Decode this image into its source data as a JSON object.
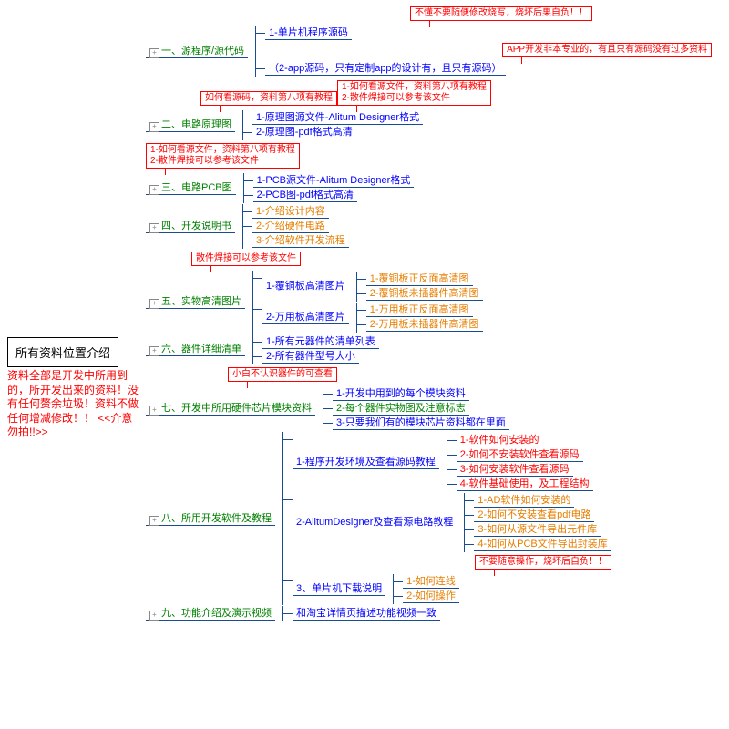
{
  "colors": {
    "green": "#008000",
    "blue": "#0000ff",
    "orange": "#e67e00",
    "red": "#ff0000",
    "dark": "#1a4d8f"
  },
  "root": {
    "title": "所有资料位置介绍",
    "note": "资料全部是开发中所用到的，所开发出来的资料！没有任何赘余垃圾！资料不做任何增减修改！！\n<<介意勿拍!!>>"
  },
  "callouts": {
    "c1": "不懂不要随便修改烧写，烧坏后果自负！！",
    "c1a": "APP开发非本专业的，有且只有源码没有过多资料",
    "c2": "如何看源码，资料第八项有教程",
    "c3": "1-如何看源文件，资料第八项有教程\n2-散件焊接可以参考该文件",
    "c4": "1-如何看源文件，资料第八项有教程\n2-散件焊接可以参考该文件",
    "c5": "散件焊接可以参考该文件",
    "c6": "小白不认识器件的可查看",
    "c7": "不要随意操作，烧坏后自负！！"
  },
  "branches": [
    {
      "label": "一、源程序/源代码",
      "color": "green",
      "children": [
        {
          "label": "1-单片机程序源码",
          "color": "blue"
        },
        {
          "label": "（2-app源码，只有定制app的设计有，且只有源码）",
          "color": "blue"
        }
      ]
    },
    {
      "label": "二、电路原理图",
      "color": "green",
      "children": [
        {
          "label": "1-原理图源文件-Alitum Designer格式",
          "color": "blue"
        },
        {
          "label": "2-原理图-pdf格式高清",
          "color": "blue"
        }
      ]
    },
    {
      "label": "三、电路PCB图",
      "color": "green",
      "children": [
        {
          "label": "1-PCB源文件-Alitum Designer格式",
          "color": "blue"
        },
        {
          "label": "2-PCB图-pdf格式高清",
          "color": "blue"
        }
      ]
    },
    {
      "label": "四、开发说明书",
      "color": "green",
      "children": [
        {
          "label": "1-介绍设计内容",
          "color": "orange"
        },
        {
          "label": "2-介绍硬件电路",
          "color": "orange"
        },
        {
          "label": "3-介绍软件开发流程",
          "color": "orange"
        }
      ]
    },
    {
      "label": "五、实物高清图片",
      "color": "green",
      "children": [
        {
          "label": "1-覆铜板高清图片",
          "color": "blue",
          "children": [
            {
              "label": "1-覆铜板正反面高清图",
              "color": "orange"
            },
            {
              "label": "2-覆铜板未插器件高清图",
              "color": "orange"
            }
          ]
        },
        {
          "label": "2-万用板高清图片",
          "color": "blue",
          "children": [
            {
              "label": "1-万用板正反面高清图",
              "color": "orange"
            },
            {
              "label": "2-万用板未插器件高清图",
              "color": "orange"
            }
          ]
        }
      ]
    },
    {
      "label": "六、器件详细清单",
      "color": "green",
      "children": [
        {
          "label": "1-所有元器件的清单列表",
          "color": "blue"
        },
        {
          "label": "2-所有器件型号大小",
          "color": "blue"
        }
      ]
    },
    {
      "label": "七、开发中所用硬件芯片模块资料",
      "color": "green",
      "children": [
        {
          "label": "1-开发中用到的每个模块资料",
          "color": "blue"
        },
        {
          "label": "2-每个器件实物图及注意标志",
          "color": "green"
        },
        {
          "label": "3-只要我们有的模块芯片资料都在里面",
          "color": "blue"
        }
      ]
    },
    {
      "label": "八、所用开发软件及教程",
      "color": "green",
      "children": [
        {
          "label": "1-程序开发环境及查看源码教程",
          "color": "blue",
          "children": [
            {
              "label": "1-软件如何安装的",
              "color": "red"
            },
            {
              "label": "2-如何不安装软件查看源码",
              "color": "red"
            },
            {
              "label": "3-如何安装软件查看源码",
              "color": "red"
            },
            {
              "label": "4-软件基础使用，及工程结构",
              "color": "red"
            }
          ]
        },
        {
          "label": "2-AlitumDesigner及查看源电路教程",
          "color": "blue",
          "children": [
            {
              "label": "1-AD软件如何安装的",
              "color": "orange"
            },
            {
              "label": "2-如何不安装查看pdf电路",
              "color": "orange"
            },
            {
              "label": "3-如何从源文件导出元件库",
              "color": "orange"
            },
            {
              "label": "4-如何从PCB文件导出封装库",
              "color": "orange"
            }
          ]
        },
        {
          "label": "3、单片机下载说明",
          "color": "blue",
          "children": [
            {
              "label": "1-如何连线",
              "color": "orange"
            },
            {
              "label": "2-如何操作",
              "color": "orange"
            }
          ]
        }
      ]
    },
    {
      "label": "九、功能介绍及演示视频",
      "color": "green",
      "children": [
        {
          "label": "和淘宝详情页描述功能视频一致",
          "color": "blue"
        }
      ]
    }
  ]
}
